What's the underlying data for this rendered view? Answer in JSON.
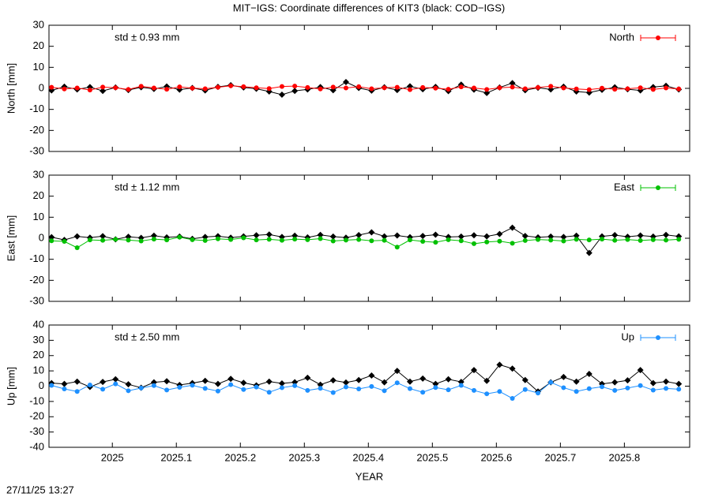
{
  "title": "MIT−IGS: Coordinate differences of KIT3 (black: COD−IGS)",
  "timestamp": "27/11/25 13:27",
  "chart_data": [
    {
      "type": "line",
      "ylabel": "North [mm]",
      "annotation": "std ± 0.93 mm",
      "xlim": [
        2024.901,
        2025.902
      ],
      "xticks": [
        2025,
        2025.1,
        2025.2,
        2025.3,
        2025.4,
        2025.5,
        2025.6,
        2025.7,
        2025.8
      ],
      "ylim": [
        -30,
        30
      ],
      "yticks": [
        -30,
        -20,
        -10,
        0,
        10,
        20,
        30
      ],
      "legend": "top-right",
      "x": [
        2024.905,
        2024.925,
        2024.945,
        2024.965,
        2024.985,
        2025.005,
        2025.025,
        2025.045,
        2025.065,
        2025.085,
        2025.105,
        2025.125,
        2025.145,
        2025.165,
        2025.185,
        2025.205,
        2025.225,
        2025.245,
        2025.265,
        2025.285,
        2025.305,
        2025.325,
        2025.345,
        2025.365,
        2025.385,
        2025.405,
        2025.425,
        2025.445,
        2025.465,
        2025.485,
        2025.505,
        2025.525,
        2025.545,
        2025.565,
        2025.585,
        2025.605,
        2025.625,
        2025.645,
        2025.665,
        2025.685,
        2025.705,
        2025.725,
        2025.745,
        2025.765,
        2025.785,
        2025.805,
        2025.825,
        2025.845,
        2025.865,
        2025.885
      ],
      "series": [
        {
          "color": "#000000",
          "values": [
            -1.0,
            0.8,
            -0.5,
            0.6,
            -1.2,
            0.4,
            -0.8,
            0.5,
            -0.3,
            0.9,
            -0.6,
            0.2,
            -1.0,
            0.7,
            1.5,
            0.4,
            -0.2,
            -1.5,
            -3.0,
            -1.2,
            -0.5,
            0.6,
            -0.9,
            3.0,
            0.2,
            -1.1,
            0.5,
            -0.8,
            1.0,
            -0.4,
            0.7,
            -1.3,
            1.8,
            -0.6,
            -2.2,
            0.4,
            2.5,
            -0.9,
            0.3,
            -0.5,
            0.8,
            -1.5,
            -2.0,
            -0.7,
            0.5,
            -0.4,
            -1.0,
            0.6,
            1.2,
            -0.5
          ]
        },
        {
          "name": "North",
          "color": "#ff0000",
          "values": [
            0.5,
            -0.3,
            0.2,
            -0.8,
            0.6,
            0.3,
            -0.5,
            1.0,
            0.2,
            -0.4,
            0.7,
            0.1,
            -0.2,
            0.5,
            1.2,
            0.8,
            0.3,
            -0.1,
            0.9,
            1.1,
            0.4,
            -0.3,
            0.6,
            0.2,
            0.8,
            -0.2,
            0.3,
            0.5,
            -0.6,
            0.4,
            0.1,
            -0.4,
            0.7,
            0.2,
            -0.5,
            0.3,
            0.6,
            -0.2,
            0.4,
            1.0,
            0.2,
            -0.3,
            -0.6,
            0.1,
            -0.4,
            -0.2,
            0.3,
            -0.5,
            0.2,
            -0.3
          ]
        }
      ]
    },
    {
      "type": "line",
      "ylabel": "East [mm]",
      "annotation": "std ± 1.12 mm",
      "xlim": [
        2024.901,
        2025.902
      ],
      "xticks": [
        2025,
        2025.1,
        2025.2,
        2025.3,
        2025.4,
        2025.5,
        2025.6,
        2025.7,
        2025.8
      ],
      "ylim": [
        -30,
        30
      ],
      "yticks": [
        -30,
        -20,
        -10,
        0,
        10,
        20,
        30
      ],
      "legend": "top-right",
      "x": [
        2024.905,
        2024.925,
        2024.945,
        2024.965,
        2024.985,
        2025.005,
        2025.025,
        2025.045,
        2025.065,
        2025.085,
        2025.105,
        2025.125,
        2025.145,
        2025.165,
        2025.185,
        2025.205,
        2025.225,
        2025.245,
        2025.265,
        2025.285,
        2025.305,
        2025.325,
        2025.345,
        2025.365,
        2025.385,
        2025.405,
        2025.425,
        2025.445,
        2025.465,
        2025.485,
        2025.505,
        2025.525,
        2025.545,
        2025.565,
        2025.585,
        2025.605,
        2025.625,
        2025.645,
        2025.665,
        2025.685,
        2025.705,
        2025.725,
        2025.745,
        2025.765,
        2025.785,
        2025.805,
        2025.825,
        2025.845,
        2025.865,
        2025.885
      ],
      "series": [
        {
          "color": "#000000",
          "values": [
            0.5,
            -0.8,
            0.9,
            0.3,
            1.0,
            -0.5,
            0.7,
            0.2,
            1.2,
            0.4,
            0.8,
            -0.3,
            0.6,
            1.0,
            0.3,
            0.9,
            1.4,
            1.8,
            0.6,
            1.2,
            0.4,
            1.6,
            0.8,
            0.3,
            1.5,
            2.8,
            0.9,
            1.3,
            0.5,
            1.1,
            1.7,
            0.6,
            0.8,
            1.4,
            0.9,
            2.0,
            5.0,
            1.1,
            0.4,
            0.8,
            0.6,
            1.2,
            -7.0,
            0.9,
            1.5,
            0.7,
            1.3,
            0.8,
            1.6,
            0.9
          ]
        },
        {
          "name": "East",
          "color": "#00c000",
          "values": [
            -1.2,
            -1.5,
            -4.5,
            -0.8,
            -1.0,
            -0.5,
            -0.9,
            -1.3,
            -0.4,
            -0.8,
            0.5,
            -0.7,
            -1.1,
            -0.3,
            -0.6,
            0.2,
            -0.8,
            -0.5,
            -1.0,
            -0.4,
            -0.7,
            -0.2,
            -1.3,
            -0.9,
            -0.6,
            -1.2,
            -1.0,
            -4.2,
            -0.8,
            -1.5,
            -1.9,
            -0.7,
            -1.2,
            -2.6,
            -1.8,
            -1.4,
            -2.4,
            -1.1,
            -0.6,
            -0.9,
            -1.3,
            -0.5,
            -0.8,
            -0.4,
            -1.0,
            -0.6,
            -1.1,
            -0.7,
            -0.9,
            -0.5
          ]
        }
      ]
    },
    {
      "type": "line",
      "ylabel": "Up [mm]",
      "xlabel": "YEAR",
      "annotation": "std ± 2.50 mm",
      "xlim": [
        2024.901,
        2025.902
      ],
      "xticks": [
        2025,
        2025.1,
        2025.2,
        2025.3,
        2025.4,
        2025.5,
        2025.6,
        2025.7,
        2025.8
      ],
      "ylim": [
        -40,
        40
      ],
      "yticks": [
        -40,
        -30,
        -20,
        -10,
        0,
        10,
        20,
        30,
        40
      ],
      "legend": "top-right",
      "x": [
        2024.905,
        2024.925,
        2024.945,
        2024.965,
        2024.985,
        2025.005,
        2025.025,
        2025.045,
        2025.065,
        2025.085,
        2025.105,
        2025.125,
        2025.145,
        2025.165,
        2025.185,
        2025.205,
        2025.225,
        2025.245,
        2025.265,
        2025.285,
        2025.305,
        2025.325,
        2025.345,
        2025.365,
        2025.385,
        2025.405,
        2025.425,
        2025.445,
        2025.465,
        2025.485,
        2025.505,
        2025.525,
        2025.545,
        2025.565,
        2025.585,
        2025.605,
        2025.625,
        2025.645,
        2025.665,
        2025.685,
        2025.705,
        2025.725,
        2025.745,
        2025.765,
        2025.785,
        2025.805,
        2025.825,
        2025.845,
        2025.865,
        2025.885
      ],
      "series": [
        {
          "color": "#000000",
          "values": [
            2.0,
            1.5,
            3.0,
            -0.5,
            2.8,
            4.5,
            1.2,
            -1.0,
            2.5,
            3.2,
            0.8,
            2.0,
            3.5,
            1.5,
            4.8,
            2.2,
            0.5,
            3.0,
            1.8,
            2.6,
            5.5,
            1.0,
            3.8,
            2.4,
            4.0,
            7.0,
            2.5,
            10.0,
            3.0,
            5.0,
            1.5,
            4.5,
            2.8,
            10.5,
            3.5,
            14.0,
            11.5,
            4.0,
            -3.5,
            2.5,
            6.0,
            3.0,
            8.0,
            1.5,
            2.5,
            3.8,
            10.5,
            2.0,
            3.0,
            1.5
          ]
        },
        {
          "name": "Up",
          "color": "#1e90ff",
          "values": [
            0.5,
            -1.8,
            -3.5,
            0.8,
            -2.0,
            1.5,
            -3.0,
            -1.2,
            0.4,
            -2.5,
            -0.8,
            0.6,
            -1.5,
            -3.2,
            1.0,
            -2.2,
            -0.6,
            -4.0,
            -1.0,
            0.3,
            -2.8,
            -1.4,
            -4.2,
            -0.5,
            -1.8,
            -0.2,
            -3.0,
            2.2,
            -1.6,
            -4.0,
            -0.9,
            -2.4,
            0.5,
            -2.8,
            -5.0,
            -3.5,
            -8.0,
            -2.2,
            -4.5,
            2.5,
            -1.0,
            -3.5,
            -1.6,
            -0.4,
            -2.8,
            -1.2,
            0.4,
            -2.6,
            -1.5,
            -2.0
          ]
        }
      ]
    }
  ]
}
